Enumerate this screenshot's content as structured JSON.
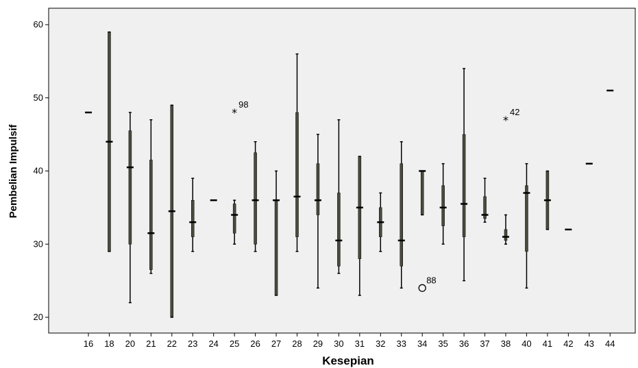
{
  "chart_data": {
    "type": "boxplot",
    "xlabel": "Kesepian",
    "ylabel": "Pembelian Impulsif",
    "ylim": [
      18,
      62
    ],
    "yticks": [
      20,
      30,
      40,
      50,
      60
    ],
    "grid": false,
    "colors": {
      "plot_bg": "#f0f0f0",
      "box": "#4a4a3e",
      "line": "#000000"
    },
    "categories": [
      "16",
      "18",
      "20",
      "21",
      "22",
      "23",
      "24",
      "25",
      "26",
      "27",
      "28",
      "29",
      "30",
      "31",
      "32",
      "33",
      "34",
      "35",
      "36",
      "37",
      "38",
      "40",
      "41",
      "42",
      "43",
      "44"
    ],
    "boxes": [
      {
        "category": "16",
        "min": 48,
        "q1": 48,
        "median": 48,
        "q3": 48,
        "max": 48
      },
      {
        "category": "18",
        "min": 29,
        "q1": 29,
        "median": 44,
        "q3": 59,
        "max": 59
      },
      {
        "category": "20",
        "min": 22,
        "q1": 30,
        "median": 40.5,
        "q3": 45.5,
        "max": 48
      },
      {
        "category": "21",
        "min": 26,
        "q1": 26.5,
        "median": 31.5,
        "q3": 41.5,
        "max": 47
      },
      {
        "category": "22",
        "min": 20,
        "q1": 20,
        "median": 34.5,
        "q3": 49,
        "max": 49
      },
      {
        "category": "23",
        "min": 29,
        "q1": 31,
        "median": 33,
        "q3": 36,
        "max": 39
      },
      {
        "category": "24",
        "min": 36,
        "q1": 36,
        "median": 36,
        "q3": 36,
        "max": 36
      },
      {
        "category": "25",
        "min": 30,
        "q1": 31.5,
        "median": 34,
        "q3": 35.5,
        "max": 36
      },
      {
        "category": "26",
        "min": 29,
        "q1": 30,
        "median": 36,
        "q3": 42.5,
        "max": 44
      },
      {
        "category": "27",
        "min": 23,
        "q1": 23,
        "median": 36,
        "q3": 36,
        "max": 40
      },
      {
        "category": "28",
        "min": 29,
        "q1": 31,
        "median": 36.5,
        "q3": 48,
        "max": 56
      },
      {
        "category": "29",
        "min": 24,
        "q1": 34,
        "median": 36,
        "q3": 41,
        "max": 45
      },
      {
        "category": "30",
        "min": 26,
        "q1": 27,
        "median": 30.5,
        "q3": 37,
        "max": 47
      },
      {
        "category": "31",
        "min": 23,
        "q1": 28,
        "median": 35,
        "q3": 42,
        "max": 42
      },
      {
        "category": "32",
        "min": 29,
        "q1": 31,
        "median": 33,
        "q3": 35,
        "max": 37
      },
      {
        "category": "33",
        "min": 24,
        "q1": 27,
        "median": 30.5,
        "q3": 41,
        "max": 44
      },
      {
        "category": "34",
        "min": 34,
        "q1": 34,
        "median": 40,
        "q3": 40,
        "max": 40
      },
      {
        "category": "35",
        "min": 30,
        "q1": 32.5,
        "median": 35,
        "q3": 38,
        "max": 41
      },
      {
        "category": "36",
        "min": 25,
        "q1": 31,
        "median": 35.5,
        "q3": 45,
        "max": 54
      },
      {
        "category": "37",
        "min": 33,
        "q1": 33.5,
        "median": 34,
        "q3": 36.5,
        "max": 39
      },
      {
        "category": "38",
        "min": 30,
        "q1": 30.5,
        "median": 31,
        "q3": 32,
        "max": 34
      },
      {
        "category": "40",
        "min": 24,
        "q1": 29,
        "median": 37,
        "q3": 38,
        "max": 41
      },
      {
        "category": "41",
        "min": 32,
        "q1": 32,
        "median": 36,
        "q3": 40,
        "max": 40
      },
      {
        "category": "42",
        "min": 32,
        "q1": 32,
        "median": 32,
        "q3": 32,
        "max": 32
      },
      {
        "category": "43",
        "min": 41,
        "q1": 41,
        "median": 41,
        "q3": 41,
        "max": 41
      },
      {
        "category": "44",
        "min": 51,
        "q1": 51,
        "median": 51,
        "q3": 51,
        "max": 51
      }
    ],
    "outliers": [
      {
        "category": "25",
        "value": 48,
        "marker": "star",
        "label": "98"
      },
      {
        "category": "34",
        "value": 24,
        "marker": "circle",
        "label": "88"
      },
      {
        "category": "38",
        "value": 47,
        "marker": "star",
        "label": "42"
      }
    ]
  }
}
